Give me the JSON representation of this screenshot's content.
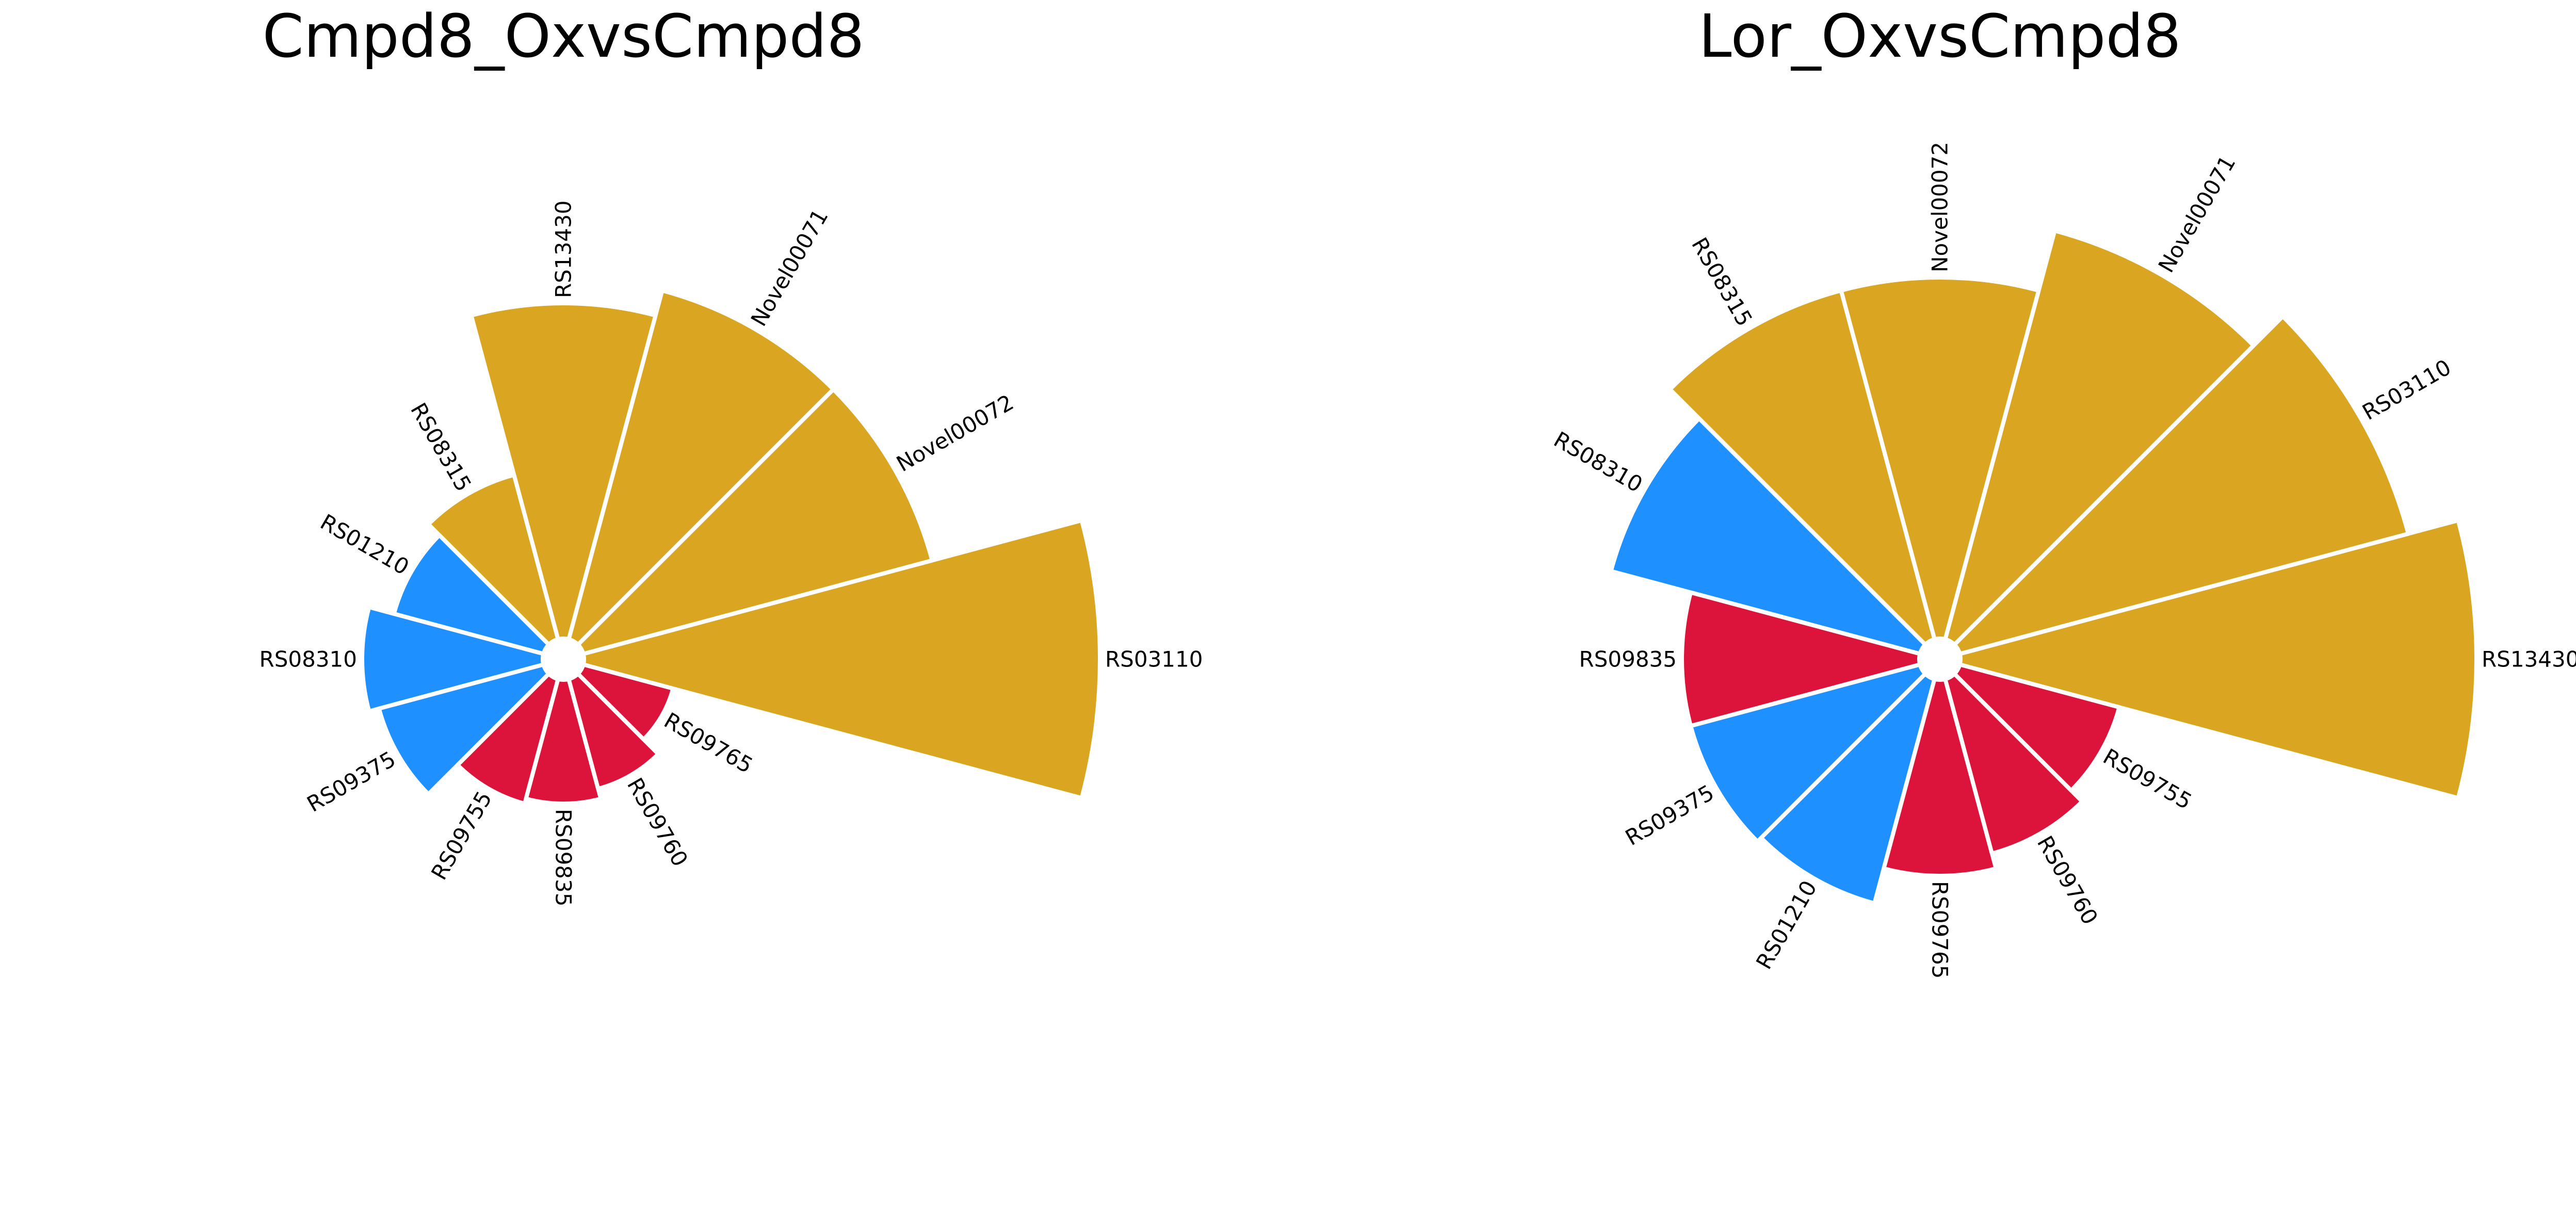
{
  "chart_data": [
    {
      "type": "bar",
      "polar": true,
      "title": "Cmpd8_OxvsCmpd8",
      "categories": [
        "RS03110",
        "Novel00072",
        "Novel00071",
        "RS13430",
        "RS08315",
        "RS01210",
        "RS08310",
        "RS09375",
        "RS09755",
        "RS09835",
        "RS09760",
        "RS09765"
      ],
      "values": [
        10.0,
        7.0,
        7.0,
        6.5,
        3.3,
        3.0,
        3.5,
        3.3,
        2.5,
        2.4,
        2.2,
        1.8
      ],
      "group_colors": [
        "#DAA520",
        "#DAA520",
        "#DAA520",
        "#DAA520",
        "#DAA520",
        "#1E90FF",
        "#1E90FF",
        "#1E90FF",
        "#DC143C",
        "#DC143C",
        "#DC143C",
        "#DC143C"
      ]
    },
    {
      "type": "bar",
      "polar": true,
      "title": "Lor_OxvsCmpd8",
      "categories": [
        "RS13430",
        "RS03110",
        "Novel00071",
        "Novel00072",
        "RS08315",
        "RS08310",
        "RS09835",
        "RS09375",
        "RS01210",
        "RS09765",
        "RS09760",
        "RS09755"
      ],
      "values": [
        10.0,
        9.0,
        8.2,
        7.0,
        7.0,
        6.2,
        4.6,
        4.6,
        4.5,
        3.8,
        3.5,
        3.2
      ],
      "group_colors": [
        "#DAA520",
        "#DAA520",
        "#DAA520",
        "#DAA520",
        "#DAA520",
        "#1E90FF",
        "#DC143C",
        "#1E90FF",
        "#1E90FF",
        "#DC143C",
        "#DC143C",
        "#DC143C"
      ]
    }
  ]
}
